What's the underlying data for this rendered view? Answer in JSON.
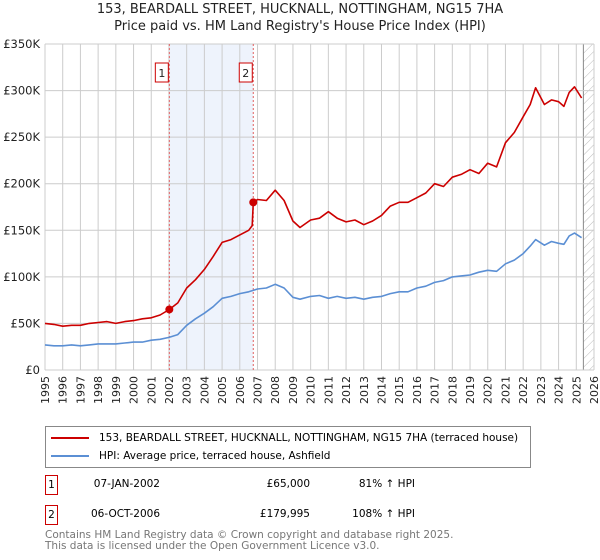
{
  "chart_data": {
    "type": "line",
    "title": "153, BEARDALL STREET, HUCKNALL, NOTTINGHAM, NG15 7HA",
    "subtitle": "Price paid vs. HM Land Registry's House Price Index (HPI)",
    "xlim": [
      1995,
      2026
    ],
    "ylim": [
      0,
      350000
    ],
    "yticks": [
      0,
      50000,
      100000,
      150000,
      200000,
      250000,
      300000,
      350000
    ],
    "ytick_labels": [
      "£0",
      "£50K",
      "£100K",
      "£150K",
      "£200K",
      "£250K",
      "£300K",
      "£350K"
    ],
    "xticks": [
      "1995",
      "1996",
      "1997",
      "1998",
      "1999",
      "2000",
      "2001",
      "2002",
      "2003",
      "2004",
      "2005",
      "2006",
      "2007",
      "2008",
      "2009",
      "2010",
      "2011",
      "2012",
      "2013",
      "2014",
      "2015",
      "2016",
      "2017",
      "2018",
      "2019",
      "2020",
      "2021",
      "2022",
      "2023",
      "2024",
      "2025",
      "2026"
    ],
    "grid": true,
    "shaded_region": [
      2002.02,
      2006.76
    ],
    "hatched_after": 2025.4,
    "series": [
      {
        "name": "153, BEARDALL STREET, HUCKNALL, NOTTINGHAM, NG15 7HA (terraced house)",
        "color": "#cc0000",
        "x": [
          1995,
          1995.5,
          1996,
          1996.5,
          1997,
          1997.5,
          1998,
          1998.5,
          1999,
          1999.5,
          2000,
          2000.5,
          2001,
          2001.5,
          2002.02,
          2002.5,
          2003,
          2003.5,
          2004,
          2004.5,
          2005,
          2005.5,
          2006,
          2006.5,
          2006.7,
          2006.76,
          2007,
          2007.5,
          2008,
          2008.5,
          2009,
          2009.4,
          2010,
          2010.5,
          2011,
          2011.5,
          2012,
          2012.5,
          2013,
          2013.5,
          2014,
          2014.5,
          2015,
          2015.5,
          2016,
          2016.5,
          2017,
          2017.5,
          2018,
          2018.5,
          2019,
          2019.5,
          2020,
          2020.5,
          2021,
          2021.5,
          2022,
          2022.4,
          2022.7,
          2023.2,
          2023.6,
          2024,
          2024.3,
          2024.6,
          2024.9,
          2025.3
        ],
        "y": [
          50000,
          49000,
          47000,
          48000,
          48000,
          50000,
          51000,
          52000,
          50000,
          52000,
          53000,
          55000,
          56000,
          59000,
          65000,
          72000,
          88000,
          97000,
          108000,
          122000,
          137000,
          140000,
          145000,
          150000,
          155000,
          179995,
          183000,
          182000,
          193000,
          182000,
          160000,
          153000,
          161000,
          163000,
          170000,
          163000,
          159000,
          161000,
          156000,
          160000,
          166000,
          176000,
          180000,
          180000,
          185000,
          190000,
          200000,
          197000,
          207000,
          210000,
          215000,
          211000,
          222000,
          218000,
          244000,
          255000,
          272000,
          285000,
          303000,
          285000,
          290000,
          288000,
          283000,
          298000,
          304000,
          292000
        ]
      },
      {
        "name": "HPI: Average price, terraced house, Ashfield",
        "color": "#5b8fd4",
        "x": [
          1995,
          1995.5,
          1996,
          1996.5,
          1997,
          1997.5,
          1998,
          1998.5,
          1999,
          1999.5,
          2000,
          2000.5,
          2001,
          2001.5,
          2002,
          2002.5,
          2003,
          2003.5,
          2004,
          2004.5,
          2005,
          2005.5,
          2006,
          2006.5,
          2007,
          2007.5,
          2008,
          2008.5,
          2009,
          2009.4,
          2010,
          2010.5,
          2011,
          2011.5,
          2012,
          2012.5,
          2013,
          2013.5,
          2014,
          2014.5,
          2015,
          2015.5,
          2016,
          2016.5,
          2017,
          2017.5,
          2018,
          2018.5,
          2019,
          2019.5,
          2020,
          2020.5,
          2021,
          2021.5,
          2022,
          2022.4,
          2022.7,
          2023.2,
          2023.6,
          2024,
          2024.3,
          2024.6,
          2024.9,
          2025.3
        ],
        "y": [
          27000,
          26000,
          26000,
          27000,
          26000,
          27000,
          28000,
          28000,
          28000,
          29000,
          30000,
          30000,
          32000,
          33000,
          35000,
          38000,
          48000,
          55000,
          61000,
          68000,
          77000,
          79000,
          82000,
          84000,
          87000,
          88000,
          92000,
          88000,
          78000,
          76000,
          79000,
          80000,
          77000,
          79000,
          77000,
          78000,
          76000,
          78000,
          79000,
          82000,
          84000,
          84000,
          88000,
          90000,
          94000,
          96000,
          100000,
          101000,
          102000,
          105000,
          107000,
          106000,
          114000,
          118000,
          125000,
          133000,
          140000,
          134000,
          138000,
          136000,
          135000,
          144000,
          147000,
          142000
        ]
      }
    ],
    "markers": [
      {
        "label": "1",
        "x": 2002.02,
        "y": 65000
      },
      {
        "label": "2",
        "x": 2006.76,
        "y": 179995
      }
    ]
  },
  "legend": [
    {
      "label": "153, BEARDALL STREET, HUCKNALL, NOTTINGHAM, NG15 7HA (terraced house)",
      "color": "#cc0000"
    },
    {
      "label": "HPI: Average price, terraced house, Ashfield",
      "color": "#5b8fd4"
    }
  ],
  "transactions": [
    {
      "num": "1",
      "date": "07-JAN-2002",
      "price": "£65,000",
      "hpi": "81% ↑ HPI"
    },
    {
      "num": "2",
      "date": "06-OCT-2006",
      "price": "£179,995",
      "hpi": "108% ↑ HPI"
    }
  ],
  "footer": {
    "line1": "Contains HM Land Registry data © Crown copyright and database right 2025.",
    "line2": "This data is licensed under the Open Government Licence v3.0."
  }
}
